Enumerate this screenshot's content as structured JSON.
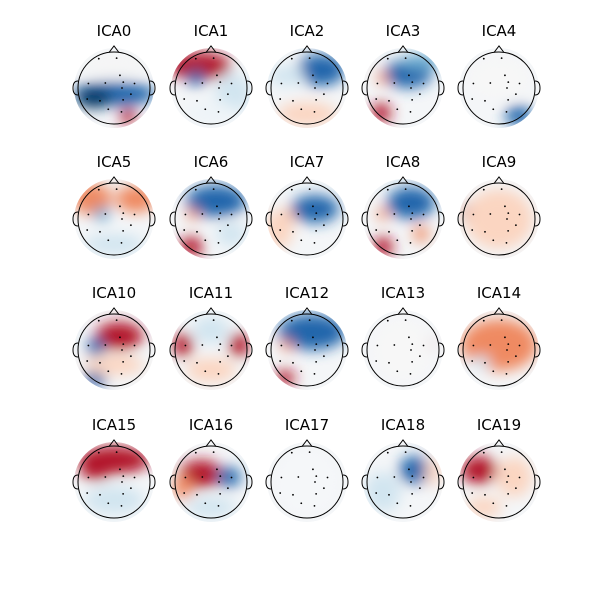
{
  "panels": [
    "ICA0",
    "ICA1",
    "ICA2",
    "ICA3",
    "ICA4",
    "ICA5",
    "ICA6",
    "ICA7",
    "ICA8",
    "ICA9",
    "ICA10",
    "ICA11",
    "ICA12",
    "ICA13",
    "ICA14",
    "ICA15",
    "ICA16",
    "ICA17",
    "ICA18",
    "ICA19"
  ]
}
